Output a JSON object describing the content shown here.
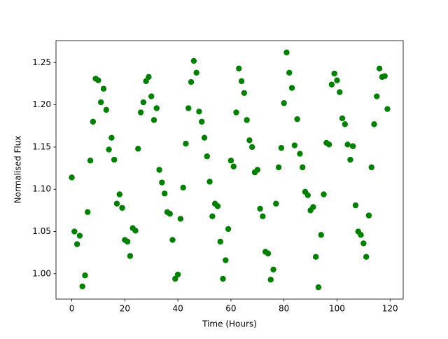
{
  "chart_data": {
    "type": "scatter",
    "xlabel": "Time (Hours)",
    "ylabel": "Normalised Flux",
    "color": "#008000",
    "x": [
      0,
      1,
      2,
      3,
      4,
      5,
      6,
      7,
      8,
      9,
      10,
      11,
      12,
      13,
      14,
      15,
      16,
      17,
      18,
      19,
      20,
      21,
      22,
      23,
      24,
      25,
      26,
      27,
      28,
      29,
      30,
      31,
      32,
      33,
      34,
      35,
      36,
      37,
      38,
      39,
      40,
      41,
      42,
      43,
      44,
      45,
      46,
      47,
      48,
      49,
      50,
      51,
      52,
      53,
      54,
      55,
      56,
      57,
      58,
      59,
      60,
      61,
      62,
      63,
      64,
      65,
      66,
      67,
      68,
      69,
      70,
      71,
      72,
      73,
      74,
      75,
      76,
      77,
      78,
      79,
      80,
      81,
      82,
      83,
      84,
      85,
      86,
      87,
      88,
      89,
      90,
      91,
      92,
      93,
      94,
      95,
      96,
      97,
      98,
      99,
      100,
      101,
      102,
      103,
      104,
      105,
      106,
      107,
      108,
      109,
      110,
      111,
      112,
      113,
      114,
      115,
      116,
      117,
      118,
      119
    ],
    "values": [
      1.114,
      1.05,
      1.035,
      1.045,
      0.985,
      0.998,
      1.073,
      1.134,
      1.18,
      1.231,
      1.229,
      1.203,
      1.219,
      1.194,
      1.147,
      1.161,
      1.135,
      1.083,
      1.094,
      1.078,
      1.04,
      1.038,
      1.021,
      1.054,
      1.051,
      1.148,
      1.191,
      1.203,
      1.228,
      1.233,
      1.21,
      1.182,
      1.196,
      1.123,
      1.108,
      1.095,
      1.073,
      1.071,
      1.04,
      0.994,
      0.999,
      1.065,
      1.102,
      1.154,
      1.196,
      1.227,
      1.252,
      1.238,
      1.192,
      1.18,
      1.161,
      1.139,
      1.109,
      1.068,
      1.083,
      1.08,
      1.038,
      0.994,
      1.016,
      1.053,
      1.134,
      1.127,
      1.191,
      1.243,
      1.228,
      1.214,
      1.182,
      1.158,
      1.15,
      1.12,
      1.123,
      1.077,
      1.068,
      1.026,
      1.024,
      0.993,
      1.005,
      1.083,
      1.126,
      1.149,
      1.202,
      1.262,
      1.238,
      1.22,
      1.152,
      1.183,
      1.142,
      1.126,
      1.097,
      1.093,
      1.075,
      1.079,
      1.02,
      0.984,
      1.046,
      1.094,
      1.155,
      1.153,
      1.224,
      1.237,
      1.229,
      1.215,
      1.184,
      1.177,
      1.153,
      1.135,
      1.151,
      1.081,
      1.05,
      1.046,
      1.036,
      1.02,
      1.069,
      1.126,
      1.177,
      1.21,
      1.243,
      1.233,
      1.234,
      1.195
    ],
    "xlim": [
      -5.95,
      124.95
    ],
    "xticks": [
      0,
      20,
      40,
      60,
      80,
      100,
      120
    ],
    "ylim": [
      0.97,
      1.276
    ],
    "yticks": [
      {
        "value": 1.0,
        "label": "1.00"
      },
      1.05,
      {
        "value": 1.1,
        "label": "1.10"
      },
      1.15,
      {
        "value": 1.2,
        "label": "1.20"
      },
      1.25
    ]
  }
}
